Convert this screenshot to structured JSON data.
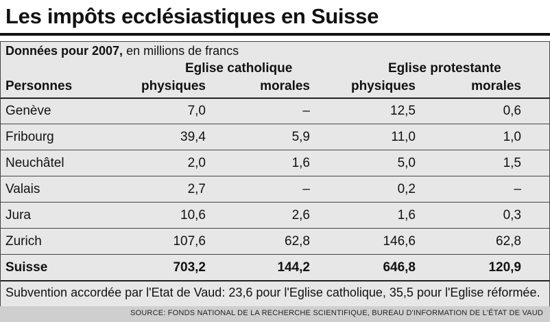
{
  "title": "Les impôts ecclésiastiques en Suisse",
  "subtitle_bold": "Données pour 2007,",
  "subtitle_rest": " en millions de francs",
  "footnote": "Subvention accordée par l'Etat de Vaud: 23,6 pour l'Eglise catholique, 35,5 pour l'Eglise réformée.",
  "source": "SOURCE: FONDS NATIONAL DE LA RECHERCHE SCIENTIFIQUE, BUREAU D'INFORMATION DE L'ÉTAT DE VAUD",
  "chart_data": {
    "type": "table",
    "column_groups": [
      "Eglise catholique",
      "Eglise protestante"
    ],
    "columns": [
      "Personnes",
      "physiques",
      "morales",
      "physiques",
      "morales"
    ],
    "rows": [
      {
        "label": "Genève",
        "values": [
          "7,0",
          "–",
          "12,5",
          "0,6"
        ]
      },
      {
        "label": "Fribourg",
        "values": [
          "39,4",
          "5,9",
          "11,0",
          "1,0"
        ]
      },
      {
        "label": "Neuchâtel",
        "values": [
          "2,0",
          "1,6",
          "5,0",
          "1,5"
        ]
      },
      {
        "label": "Valais",
        "values": [
          "2,7",
          "–",
          "0,2",
          "–"
        ]
      },
      {
        "label": "Jura",
        "values": [
          "10,6",
          "2,6",
          "1,6",
          "0,3"
        ]
      },
      {
        "label": "Zurich",
        "values": [
          "107,6",
          "62,8",
          "146,6",
          "62,8"
        ]
      },
      {
        "label": "Suisse",
        "values": [
          "703,2",
          "144,2",
          "646,8",
          "120,9"
        ]
      }
    ]
  }
}
